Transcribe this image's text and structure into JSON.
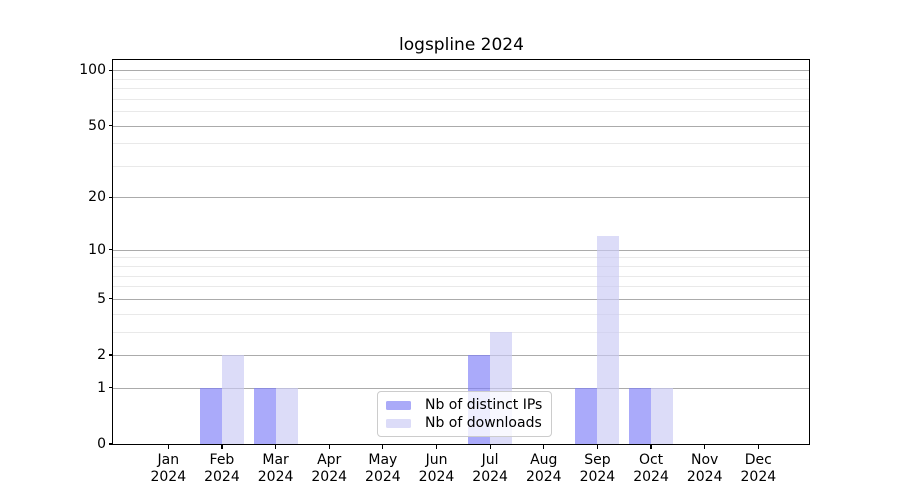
{
  "chart_data": {
    "type": "bar",
    "title": "logspline 2024",
    "categories": [
      "Jan",
      "Feb",
      "Mar",
      "Apr",
      "May",
      "Jun",
      "Jul",
      "Aug",
      "Sep",
      "Oct",
      "Nov",
      "Dec"
    ],
    "x_year_label": "2024",
    "series": [
      {
        "name": "Nb of distinct IPs",
        "values": [
          0,
          1,
          1,
          0,
          0,
          0,
          2,
          0,
          1,
          1,
          0,
          0
        ],
        "fill": "rgba(124,124,247,0.65)",
        "swatch": "#aaaaf8"
      },
      {
        "name": "Nb of downloads",
        "values": [
          0,
          2,
          1,
          0,
          0,
          0,
          3,
          0,
          12,
          1,
          0,
          0
        ],
        "fill": "rgba(201,201,244,0.65)",
        "swatch": "#dcdcf8"
      }
    ],
    "y_axis": {
      "scale": "log1p",
      "major_ticks": [
        0,
        1,
        2,
        5,
        10,
        20,
        50,
        100
      ],
      "minor_gridlines": [
        3,
        4,
        6,
        7,
        8,
        9,
        30,
        40,
        60,
        70,
        80,
        90
      ],
      "ylim": [
        0,
        113
      ]
    },
    "grid": {
      "major_color": "#ababab",
      "minor_color": "#e9e9e9"
    },
    "legend_position": "lower center",
    "axis_color": "#000000"
  }
}
